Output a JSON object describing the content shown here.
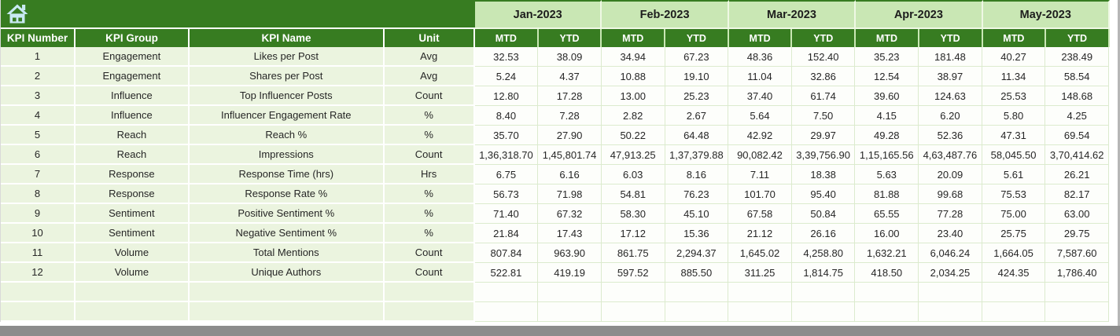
{
  "header": {
    "kpi_columns": [
      "KPI Number",
      "KPI Group",
      "KPI Name",
      "Unit"
    ],
    "months": [
      "Jan-2023",
      "Feb-2023",
      "Mar-2023",
      "Apr-2023",
      "May-2023"
    ],
    "mtd_label": "MTD",
    "ytd_label": "YTD"
  },
  "icons": {
    "home": "home-icon"
  },
  "rows": [
    {
      "number": "1",
      "group": "Engagement",
      "name": "Likes per Post",
      "unit": "Avg",
      "values": [
        "32.53",
        "38.09",
        "34.94",
        "67.23",
        "48.36",
        "152.40",
        "35.23",
        "181.48",
        "40.27",
        "238.49"
      ]
    },
    {
      "number": "2",
      "group": "Engagement",
      "name": "Shares per Post",
      "unit": "Avg",
      "values": [
        "5.24",
        "4.37",
        "10.88",
        "19.10",
        "11.04",
        "32.86",
        "12.54",
        "38.97",
        "11.34",
        "58.54"
      ]
    },
    {
      "number": "3",
      "group": "Influence",
      "name": "Top Influencer Posts",
      "unit": "Count",
      "values": [
        "12.80",
        "17.28",
        "13.00",
        "25.23",
        "37.40",
        "61.74",
        "39.60",
        "124.63",
        "25.53",
        "148.68"
      ]
    },
    {
      "number": "4",
      "group": "Influence",
      "name": "Influencer Engagement Rate",
      "unit": "%",
      "values": [
        "8.40",
        "7.28",
        "2.82",
        "2.67",
        "5.64",
        "7.50",
        "4.15",
        "6.20",
        "5.80",
        "4.25"
      ]
    },
    {
      "number": "5",
      "group": "Reach",
      "name": "Reach %",
      "unit": "%",
      "values": [
        "35.70",
        "27.90",
        "50.22",
        "64.48",
        "42.92",
        "29.97",
        "49.28",
        "52.36",
        "47.31",
        "69.54"
      ]
    },
    {
      "number": "6",
      "group": "Reach",
      "name": "Impressions",
      "unit": "Count",
      "values": [
        "1,36,318.70",
        "1,45,801.74",
        "47,913.25",
        "1,37,379.88",
        "90,082.42",
        "3,39,756.90",
        "1,15,165.56",
        "4,63,487.76",
        "58,045.50",
        "3,70,414.62"
      ]
    },
    {
      "number": "7",
      "group": "Response",
      "name": "Response Time (hrs)",
      "unit": "Hrs",
      "values": [
        "6.75",
        "6.16",
        "6.03",
        "8.16",
        "7.11",
        "18.38",
        "5.63",
        "20.09",
        "5.61",
        "26.21"
      ]
    },
    {
      "number": "8",
      "group": "Response",
      "name": "Response Rate %",
      "unit": "%",
      "values": [
        "56.73",
        "71.98",
        "54.81",
        "76.23",
        "101.70",
        "95.40",
        "81.88",
        "99.68",
        "75.53",
        "82.17"
      ]
    },
    {
      "number": "9",
      "group": "Sentiment",
      "name": "Positive Sentiment %",
      "unit": "%",
      "values": [
        "71.40",
        "67.32",
        "58.30",
        "45.10",
        "67.58",
        "50.84",
        "65.55",
        "77.28",
        "75.00",
        "63.00"
      ]
    },
    {
      "number": "10",
      "group": "Sentiment",
      "name": "Negative Sentiment %",
      "unit": "%",
      "values": [
        "21.84",
        "17.43",
        "17.12",
        "15.36",
        "21.12",
        "26.16",
        "16.00",
        "23.40",
        "25.75",
        "29.75"
      ]
    },
    {
      "number": "11",
      "group": "Volume",
      "name": "Total Mentions",
      "unit": "Count",
      "values": [
        "807.84",
        "963.90",
        "861.75",
        "2,294.37",
        "1,645.02",
        "4,258.80",
        "1,632.21",
        "6,046.24",
        "1,664.05",
        "7,587.60"
      ]
    },
    {
      "number": "12",
      "group": "Volume",
      "name": "Unique Authors",
      "unit": "Count",
      "values": [
        "522.81",
        "419.19",
        "597.52",
        "885.50",
        "311.25",
        "1,814.75",
        "418.50",
        "2,034.25",
        "424.35",
        "1,786.40"
      ]
    }
  ],
  "empty_row_count": 2,
  "colors": {
    "header_dark_green": "#377C21",
    "month_band_green": "#C9E7B4",
    "row_label_green": "#EBF4DF",
    "data_cell_white": "#FDFEFB",
    "gridline_green": "#DCEBCE",
    "home_icon_blue": "#C8E9F2",
    "bottom_bar_gray": "#8C8C8C",
    "header_text_white": "#FFFFFF",
    "text_dark": "#262626"
  }
}
